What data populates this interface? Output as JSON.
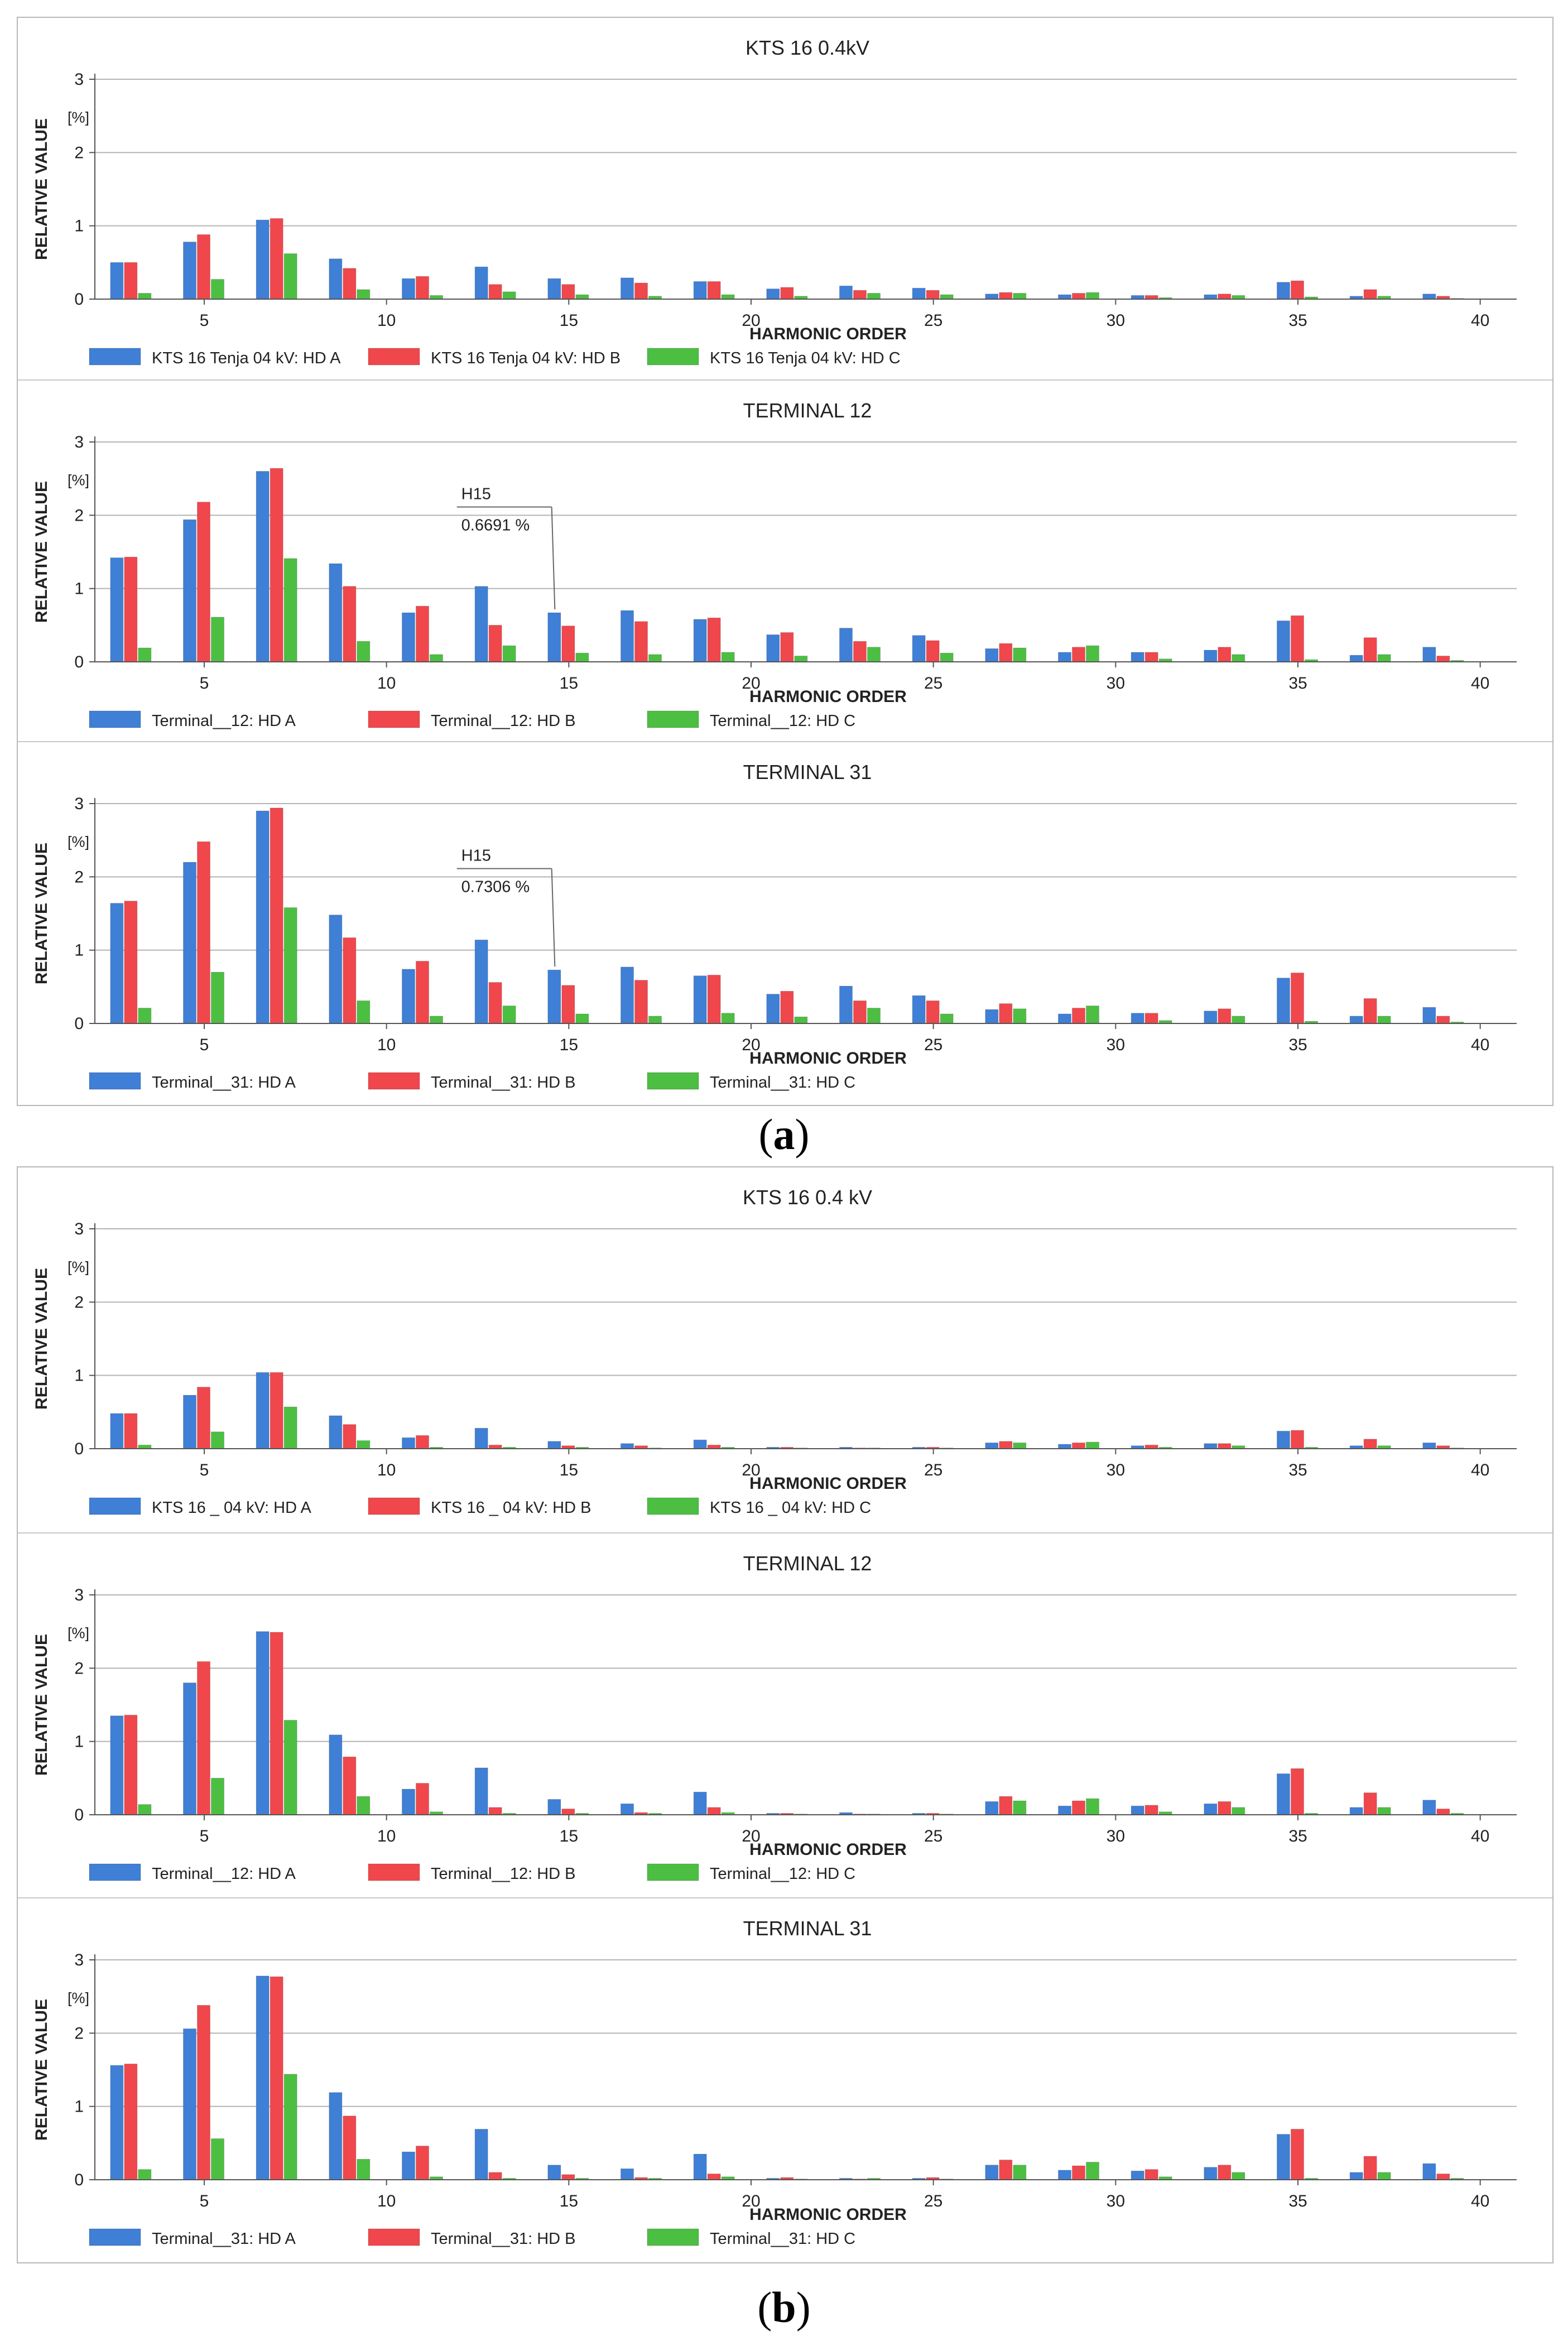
{
  "colors": {
    "series_a": "#3f7fd6",
    "series_b": "#f0474c",
    "series_c": "#4cbf42",
    "grid": "#b4b4b4",
    "axis": "#555555"
  },
  "figures": [
    {
      "id": "a",
      "caption_letter": "a"
    },
    {
      "id": "b",
      "caption_letter": "b"
    }
  ],
  "chart_data": [
    {
      "type": "bar",
      "figure": "a",
      "title": "KTS 16 0.4kV",
      "xlabel": "HARMONIC ORDER",
      "ylabel": "RELATIVE VALUE",
      "yunit": "[%]",
      "ylim": [
        0,
        3
      ],
      "yticks": [
        0,
        1,
        2,
        3
      ],
      "xticks": [
        5,
        10,
        15,
        20,
        25,
        30,
        35,
        40
      ],
      "categories": [
        3,
        5,
        7,
        9,
        11,
        13,
        15,
        17,
        19,
        21,
        23,
        25,
        27,
        29,
        31,
        33,
        35,
        37,
        39
      ],
      "series": [
        {
          "name": "KTS 16 Tenja 04 kV: HD A",
          "values": [
            0.5,
            0.78,
            1.08,
            0.55,
            0.28,
            0.44,
            0.28,
            0.29,
            0.24,
            0.14,
            0.18,
            0.15,
            0.07,
            0.06,
            0.05,
            0.06,
            0.23,
            0.04,
            0.07
          ]
        },
        {
          "name": "KTS 16 Tenja 04 kV: HD B",
          "values": [
            0.5,
            0.88,
            1.1,
            0.42,
            0.31,
            0.2,
            0.2,
            0.22,
            0.24,
            0.16,
            0.12,
            0.12,
            0.09,
            0.08,
            0.05,
            0.07,
            0.25,
            0.13,
            0.04
          ]
        },
        {
          "name": "KTS 16 Tenja 04 kV: HD C",
          "values": [
            0.08,
            0.27,
            0.62,
            0.13,
            0.05,
            0.1,
            0.06,
            0.04,
            0.06,
            0.04,
            0.08,
            0.06,
            0.08,
            0.09,
            0.02,
            0.05,
            0.03,
            0.04,
            0.01
          ]
        }
      ]
    },
    {
      "type": "bar",
      "figure": "a",
      "title": "TERMINAL 12",
      "xlabel": "HARMONIC ORDER",
      "ylabel": "RELATIVE VALUE",
      "yunit": "[%]",
      "ylim": [
        0,
        3
      ],
      "yticks": [
        0,
        1,
        2,
        3
      ],
      "xticks": [
        5,
        10,
        15,
        20,
        25,
        30,
        35,
        40
      ],
      "categories": [
        3,
        5,
        7,
        9,
        11,
        13,
        15,
        17,
        19,
        21,
        23,
        25,
        27,
        29,
        31,
        33,
        35,
        37,
        39
      ],
      "annotation": {
        "label": "H15",
        "value": "0.6691 %",
        "order": 15,
        "series": 0
      },
      "series": [
        {
          "name": "Terminal__12: HD A",
          "values": [
            1.42,
            1.94,
            2.6,
            1.34,
            0.67,
            1.03,
            0.67,
            0.7,
            0.58,
            0.37,
            0.46,
            0.36,
            0.18,
            0.13,
            0.13,
            0.16,
            0.56,
            0.09,
            0.2
          ]
        },
        {
          "name": "Terminal__12: HD B",
          "values": [
            1.43,
            2.18,
            2.64,
            1.03,
            0.76,
            0.5,
            0.49,
            0.55,
            0.6,
            0.4,
            0.28,
            0.29,
            0.25,
            0.2,
            0.13,
            0.2,
            0.63,
            0.33,
            0.08
          ]
        },
        {
          "name": "Terminal__12: HD C",
          "values": [
            0.19,
            0.61,
            1.41,
            0.28,
            0.1,
            0.22,
            0.12,
            0.1,
            0.13,
            0.08,
            0.2,
            0.12,
            0.19,
            0.22,
            0.04,
            0.1,
            0.03,
            0.1,
            0.02
          ]
        }
      ]
    },
    {
      "type": "bar",
      "figure": "a",
      "title": "TERMINAL 31",
      "xlabel": "HARMONIC ORDER",
      "ylabel": "RELATIVE VALUE",
      "yunit": "[%]",
      "ylim": [
        0,
        3
      ],
      "yticks": [
        0,
        1,
        2,
        3
      ],
      "xticks": [
        5,
        10,
        15,
        20,
        25,
        30,
        35,
        40
      ],
      "categories": [
        3,
        5,
        7,
        9,
        11,
        13,
        15,
        17,
        19,
        21,
        23,
        25,
        27,
        29,
        31,
        33,
        35,
        37,
        39
      ],
      "annotation": {
        "label": "H15",
        "value": "0.7306 %",
        "order": 15,
        "series": 0
      },
      "series": [
        {
          "name": "Terminal__31: HD A",
          "values": [
            1.64,
            2.2,
            2.9,
            1.48,
            0.74,
            1.14,
            0.73,
            0.77,
            0.65,
            0.4,
            0.51,
            0.38,
            0.19,
            0.13,
            0.14,
            0.17,
            0.62,
            0.1,
            0.22
          ]
        },
        {
          "name": "Terminal__31: HD B",
          "values": [
            1.67,
            2.48,
            2.94,
            1.17,
            0.85,
            0.56,
            0.52,
            0.59,
            0.66,
            0.44,
            0.31,
            0.31,
            0.27,
            0.21,
            0.14,
            0.2,
            0.69,
            0.34,
            0.1
          ]
        },
        {
          "name": "Terminal__31: HD C",
          "values": [
            0.21,
            0.7,
            1.58,
            0.31,
            0.1,
            0.24,
            0.13,
            0.1,
            0.14,
            0.09,
            0.21,
            0.13,
            0.2,
            0.24,
            0.04,
            0.1,
            0.03,
            0.1,
            0.02
          ]
        }
      ]
    },
    {
      "type": "bar",
      "figure": "b",
      "title": "KTS 16 0.4 kV",
      "xlabel": "HARMONIC ORDER",
      "ylabel": "RELATIVE VALUE",
      "yunit": "[%]",
      "ylim": [
        0,
        3
      ],
      "yticks": [
        0,
        1,
        2,
        3
      ],
      "xticks": [
        5,
        10,
        15,
        20,
        25,
        30,
        35,
        40
      ],
      "categories": [
        3,
        5,
        7,
        9,
        11,
        13,
        15,
        17,
        19,
        21,
        23,
        25,
        27,
        29,
        31,
        33,
        35,
        37,
        39
      ],
      "series": [
        {
          "name": "KTS 16 _ 04 kV: HD A",
          "values": [
            0.48,
            0.73,
            1.04,
            0.45,
            0.15,
            0.28,
            0.1,
            0.07,
            0.12,
            0.02,
            0.02,
            0.02,
            0.08,
            0.06,
            0.04,
            0.07,
            0.24,
            0.04,
            0.08
          ]
        },
        {
          "name": "KTS 16 _ 04 kV: HD B",
          "values": [
            0.48,
            0.84,
            1.04,
            0.33,
            0.18,
            0.05,
            0.04,
            0.04,
            0.05,
            0.02,
            0.01,
            0.02,
            0.1,
            0.08,
            0.05,
            0.07,
            0.25,
            0.13,
            0.04
          ]
        },
        {
          "name": "KTS 16 _ 04 kV: HD C",
          "values": [
            0.05,
            0.23,
            0.57,
            0.11,
            0.02,
            0.02,
            0.02,
            0.01,
            0.02,
            0.01,
            0.01,
            0.01,
            0.08,
            0.09,
            0.02,
            0.04,
            0.02,
            0.04,
            0.01
          ]
        }
      ]
    },
    {
      "type": "bar",
      "figure": "b",
      "title": "TERMINAL 12",
      "xlabel": "HARMONIC ORDER",
      "ylabel": "RELATIVE VALUE",
      "yunit": "[%]",
      "ylim": [
        0,
        3
      ],
      "yticks": [
        0,
        1,
        2,
        3
      ],
      "xticks": [
        5,
        10,
        15,
        20,
        25,
        30,
        35,
        40
      ],
      "categories": [
        3,
        5,
        7,
        9,
        11,
        13,
        15,
        17,
        19,
        21,
        23,
        25,
        27,
        29,
        31,
        33,
        35,
        37,
        39
      ],
      "series": [
        {
          "name": "Terminal__12: HD A",
          "values": [
            1.35,
            1.8,
            2.5,
            1.09,
            0.35,
            0.64,
            0.21,
            0.15,
            0.31,
            0.02,
            0.03,
            0.02,
            0.18,
            0.12,
            0.12,
            0.15,
            0.56,
            0.1,
            0.2
          ]
        },
        {
          "name": "Terminal__12: HD B",
          "values": [
            1.36,
            2.09,
            2.49,
            0.79,
            0.43,
            0.1,
            0.08,
            0.03,
            0.1,
            0.02,
            0.01,
            0.02,
            0.25,
            0.19,
            0.13,
            0.18,
            0.63,
            0.3,
            0.08
          ]
        },
        {
          "name": "Terminal__12: HD C",
          "values": [
            0.14,
            0.5,
            1.29,
            0.25,
            0.04,
            0.02,
            0.02,
            0.02,
            0.03,
            0.01,
            0.01,
            0.01,
            0.19,
            0.22,
            0.04,
            0.1,
            0.02,
            0.1,
            0.02
          ]
        }
      ]
    },
    {
      "type": "bar",
      "figure": "b",
      "title": "TERMINAL 31",
      "xlabel": "HARMONIC ORDER",
      "ylabel": "RELATIVE VALUE",
      "yunit": "[%]",
      "ylim": [
        0,
        3
      ],
      "yticks": [
        0,
        1,
        2,
        3
      ],
      "xticks": [
        5,
        10,
        15,
        20,
        25,
        30,
        35,
        40
      ],
      "categories": [
        3,
        5,
        7,
        9,
        11,
        13,
        15,
        17,
        19,
        21,
        23,
        25,
        27,
        29,
        31,
        33,
        35,
        37,
        39
      ],
      "series": [
        {
          "name": "Terminal__31: HD A",
          "values": [
            1.56,
            2.06,
            2.78,
            1.19,
            0.38,
            0.69,
            0.2,
            0.15,
            0.35,
            0.02,
            0.02,
            0.02,
            0.2,
            0.13,
            0.12,
            0.17,
            0.62,
            0.1,
            0.22
          ]
        },
        {
          "name": "Terminal__31: HD B",
          "values": [
            1.58,
            2.38,
            2.77,
            0.87,
            0.46,
            0.1,
            0.07,
            0.03,
            0.08,
            0.03,
            0.01,
            0.03,
            0.27,
            0.19,
            0.14,
            0.2,
            0.69,
            0.32,
            0.08
          ]
        },
        {
          "name": "Terminal__31: HD C",
          "values": [
            0.14,
            0.56,
            1.44,
            0.28,
            0.04,
            0.02,
            0.02,
            0.02,
            0.04,
            0.01,
            0.02,
            0.01,
            0.2,
            0.24,
            0.04,
            0.1,
            0.02,
            0.1,
            0.02
          ]
        }
      ]
    }
  ]
}
